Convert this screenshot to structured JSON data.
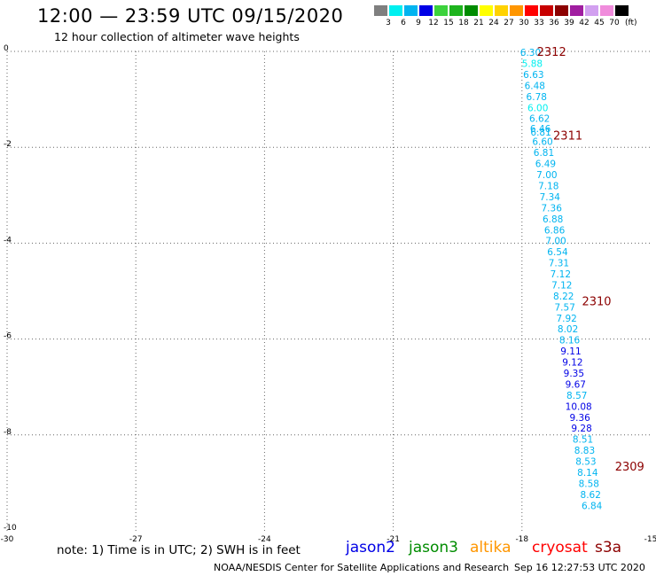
{
  "header": {
    "title": "12:00 — 23:59 UTC 09/15/2020",
    "subtitle": "12 hour collection of altimeter wave heights"
  },
  "colorbar": {
    "colors": [
      "#7f7f7f",
      "#00f0f0",
      "#00b4f0",
      "#0000e6",
      "#3cd23c",
      "#1eb41e",
      "#008c00",
      "#ffff00",
      "#ffd200",
      "#ff9600",
      "#ff0000",
      "#c80000",
      "#8c0000",
      "#a01ea0",
      "#d2a0f0",
      "#f08cdc",
      "#000000"
    ],
    "labels": [
      "3",
      "6",
      "9",
      "12",
      "15",
      "18",
      "21",
      "24",
      "27",
      "30",
      "33",
      "36",
      "39",
      "42",
      "45",
      "70"
    ],
    "unit": "(ft)"
  },
  "chart_data": {
    "type": "scatter",
    "title": "12:00 — 23:59 UTC 09/15/2020",
    "subtitle": "12 hour collection of altimeter wave heights",
    "xlim": [
      -30,
      -15
    ],
    "ylim": [
      -10,
      0
    ],
    "x_ticks": [
      "-30",
      "-27",
      "-24",
      "-21",
      "-18",
      "-15"
    ],
    "y_ticks": [
      "0",
      "-2",
      "-4",
      "-6",
      "-8",
      "-10"
    ],
    "grid": true,
    "points": [
      {
        "lon": -17.8,
        "lat": -0.02,
        "swh": "6.30",
        "color": "#00b4f0"
      },
      {
        "lon": -17.76,
        "lat": -0.25,
        "swh": "5.88",
        "color": "#00f0f0"
      },
      {
        "lon": -17.73,
        "lat": -0.48,
        "swh": "6.63",
        "color": "#00b4f0"
      },
      {
        "lon": -17.7,
        "lat": -0.71,
        "swh": "6.48",
        "color": "#00b4f0"
      },
      {
        "lon": -17.66,
        "lat": -0.94,
        "swh": "6.78",
        "color": "#00b4f0"
      },
      {
        "lon": -17.63,
        "lat": -1.17,
        "swh": "6.00",
        "color": "#00f0f0"
      },
      {
        "lon": -17.59,
        "lat": -1.4,
        "swh": "6.62",
        "color": "#00b4f0"
      },
      {
        "lon": -17.57,
        "lat": -1.61,
        "swh": "6.46",
        "color": "#00b4f0"
      },
      {
        "lon": -17.56,
        "lat": -1.68,
        "swh": "6.81",
        "color": "#00b4f0"
      },
      {
        "lon": -17.52,
        "lat": -1.88,
        "swh": "6.60",
        "color": "#00b4f0"
      },
      {
        "lon": -17.49,
        "lat": -2.11,
        "swh": "6.81",
        "color": "#00b4f0"
      },
      {
        "lon": -17.45,
        "lat": -2.34,
        "swh": "6.49",
        "color": "#00b4f0"
      },
      {
        "lon": -17.42,
        "lat": -2.57,
        "swh": "7.00",
        "color": "#00b4f0"
      },
      {
        "lon": -17.38,
        "lat": -2.8,
        "swh": "7.18",
        "color": "#00b4f0"
      },
      {
        "lon": -17.35,
        "lat": -3.03,
        "swh": "7.34",
        "color": "#00b4f0"
      },
      {
        "lon": -17.31,
        "lat": -3.26,
        "swh": "7.36",
        "color": "#00b4f0"
      },
      {
        "lon": -17.28,
        "lat": -3.49,
        "swh": "6.88",
        "color": "#00b4f0"
      },
      {
        "lon": -17.24,
        "lat": -3.72,
        "swh": "6.86",
        "color": "#00b4f0"
      },
      {
        "lon": -17.21,
        "lat": -3.95,
        "swh": "7.00",
        "color": "#00b4f0"
      },
      {
        "lon": -17.17,
        "lat": -4.18,
        "swh": "6.54",
        "color": "#00b4f0"
      },
      {
        "lon": -17.14,
        "lat": -4.41,
        "swh": "7.31",
        "color": "#00b4f0"
      },
      {
        "lon": -17.1,
        "lat": -4.64,
        "swh": "7.12",
        "color": "#00b4f0"
      },
      {
        "lon": -17.07,
        "lat": -4.87,
        "swh": "7.12",
        "color": "#00b4f0"
      },
      {
        "lon": -17.03,
        "lat": -5.1,
        "swh": "8.22",
        "color": "#00b4f0"
      },
      {
        "lon": -17.0,
        "lat": -5.33,
        "swh": "7.57",
        "color": "#00b4f0"
      },
      {
        "lon": -16.96,
        "lat": -5.56,
        "swh": "7.92",
        "color": "#00b4f0"
      },
      {
        "lon": -16.93,
        "lat": -5.79,
        "swh": "8.02",
        "color": "#00b4f0"
      },
      {
        "lon": -16.89,
        "lat": -6.02,
        "swh": "8.16",
        "color": "#00b4f0"
      },
      {
        "lon": -16.86,
        "lat": -6.25,
        "swh": "9.11",
        "color": "#0000e6"
      },
      {
        "lon": -16.82,
        "lat": -6.48,
        "swh": "9.12",
        "color": "#0000e6"
      },
      {
        "lon": -16.79,
        "lat": -6.71,
        "swh": "9.35",
        "color": "#0000e6"
      },
      {
        "lon": -16.75,
        "lat": -6.94,
        "swh": "9.67",
        "color": "#0000e6"
      },
      {
        "lon": -16.72,
        "lat": -7.17,
        "swh": "8.57",
        "color": "#00b4f0"
      },
      {
        "lon": -16.68,
        "lat": -7.4,
        "swh": "10.08",
        "color": "#0000e6"
      },
      {
        "lon": -16.65,
        "lat": -7.63,
        "swh": "9.36",
        "color": "#0000e6"
      },
      {
        "lon": -16.61,
        "lat": -7.86,
        "swh": "9.28",
        "color": "#0000e6"
      },
      {
        "lon": -16.58,
        "lat": -8.09,
        "swh": "8.51",
        "color": "#00b4f0"
      },
      {
        "lon": -16.54,
        "lat": -8.32,
        "swh": "8.83",
        "color": "#00b4f0"
      },
      {
        "lon": -16.51,
        "lat": -8.55,
        "swh": "8.53",
        "color": "#00b4f0"
      },
      {
        "lon": -16.47,
        "lat": -8.78,
        "swh": "8.14",
        "color": "#00b4f0"
      },
      {
        "lon": -16.44,
        "lat": -9.01,
        "swh": "8.58",
        "color": "#00b4f0"
      },
      {
        "lon": -16.4,
        "lat": -9.24,
        "swh": "8.62",
        "color": "#00b4f0"
      },
      {
        "lon": -16.37,
        "lat": -9.47,
        "swh": "6.84",
        "color": "#00b4f0"
      }
    ],
    "time_labels": [
      {
        "lon": -17.31,
        "lat": 0.0,
        "text": "2312"
      },
      {
        "lon": -16.93,
        "lat": -1.75,
        "text": "2311"
      },
      {
        "lon": -16.26,
        "lat": -5.2,
        "text": "2310"
      },
      {
        "lon": -15.49,
        "lat": -8.65,
        "text": "2309"
      }
    ],
    "time_label_color": "#8c0000"
  },
  "footer": {
    "note": "note: 1) Time is in UTC; 2) SWH is in feet",
    "satellites": [
      {
        "name": "jason2",
        "color": "#0000e6"
      },
      {
        "name": "jason3",
        "color": "#008c00"
      },
      {
        "name": "altika",
        "color": "#ff9600"
      },
      {
        "name": "cryosat",
        "color": "#ff0000"
      },
      {
        "name": "s3a",
        "color": "#8c0000"
      }
    ],
    "credit": "NOAA/NESDIS Center for Satellite Applications and Research",
    "timestamp": "Sep 16 12:27:53 UTC 2020"
  }
}
